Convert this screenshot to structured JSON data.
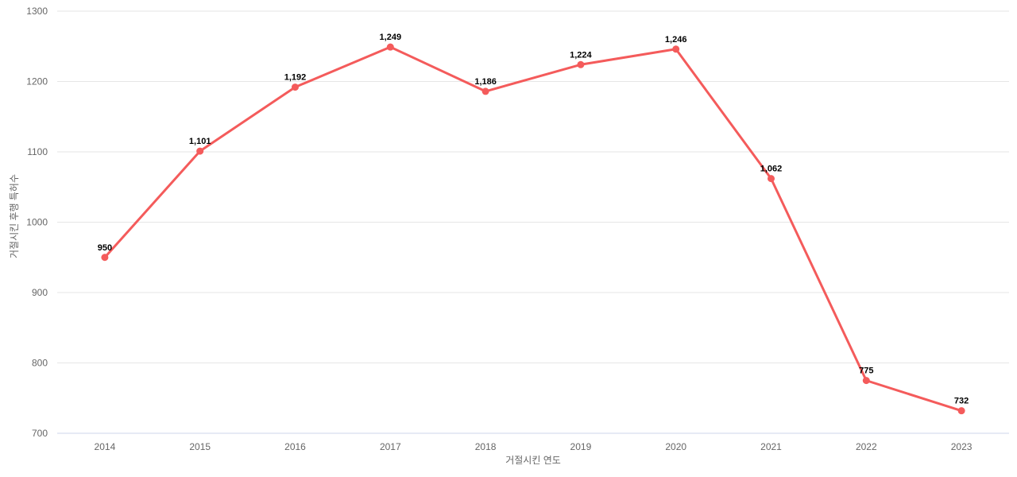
{
  "chart_data": {
    "type": "line",
    "title": "",
    "xlabel": "거절시킨 연도",
    "ylabel": "거절시킨 후행 특허수",
    "categories": [
      "2014",
      "2015",
      "2016",
      "2017",
      "2018",
      "2019",
      "2020",
      "2021",
      "2022",
      "2023"
    ],
    "values": [
      950,
      1101,
      1192,
      1249,
      1186,
      1224,
      1246,
      1062,
      775,
      732
    ],
    "value_labels": [
      "950",
      "1,101",
      "1,192",
      "1,249",
      "1,186",
      "1,224",
      "1,246",
      "1,062",
      "775",
      "732"
    ],
    "ylim": [
      700,
      1300
    ],
    "y_ticks": [
      700,
      800,
      900,
      1000,
      1100,
      1200,
      1300
    ],
    "grid": "horizontal-only",
    "legend": "none",
    "colors": {
      "series": "#f45b5b",
      "gridline": "#e6e6e6",
      "axis_line": "#ccd6eb",
      "tick_label": "#666666",
      "axis_title": "#666666",
      "data_label": "#000000",
      "background": "#ffffff"
    }
  }
}
